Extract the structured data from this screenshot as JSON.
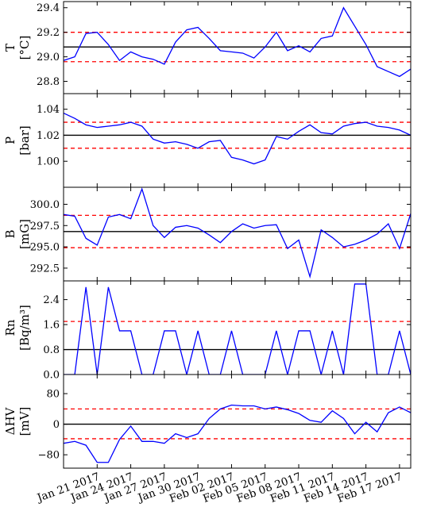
{
  "chart_data": {
    "type": "line",
    "x_dates": [
      "2017-01-18",
      "2017-01-19",
      "2017-01-20",
      "2017-01-21",
      "2017-01-22",
      "2017-01-23",
      "2017-01-24",
      "2017-01-25",
      "2017-01-26",
      "2017-01-27",
      "2017-01-28",
      "2017-01-29",
      "2017-01-30",
      "2017-01-31",
      "2017-02-01",
      "2017-02-02",
      "2017-02-03",
      "2017-02-04",
      "2017-02-05",
      "2017-02-06",
      "2017-02-07",
      "2017-02-08",
      "2017-02-09",
      "2017-02-10",
      "2017-02-11",
      "2017-02-12",
      "2017-02-13",
      "2017-02-14",
      "2017-02-15",
      "2017-02-16",
      "2017-02-17",
      "2017-02-18"
    ],
    "x_ticks": [
      {
        "date": "2017-01-21",
        "label": "Jan 21 2017"
      },
      {
        "date": "2017-01-24",
        "label": "Jan 24 2017"
      },
      {
        "date": "2017-01-27",
        "label": "Jan 27 2017"
      },
      {
        "date": "2017-01-30",
        "label": "Jan 30 2017"
      },
      {
        "date": "2017-02-02",
        "label": "Feb 02 2017"
      },
      {
        "date": "2017-02-05",
        "label": "Feb 05 2017"
      },
      {
        "date": "2017-02-08",
        "label": "Feb 08 2017"
      },
      {
        "date": "2017-02-11",
        "label": "Feb 11 2017"
      },
      {
        "date": "2017-02-14",
        "label": "Feb 14 2017"
      },
      {
        "date": "2017-02-17",
        "label": "Feb 17 2017"
      }
    ],
    "x_range": [
      "2017-01-18",
      "2017-02-18"
    ],
    "colors": {
      "series": "#0000ff",
      "mean": "#000000",
      "band": "#ff0000"
    },
    "panels": [
      {
        "key": "T",
        "ylabel": "T",
        "yunit": "[°C]",
        "ylim": [
          28.7,
          29.45
        ],
        "yticks": [
          28.8,
          29.0,
          29.2,
          29.4
        ],
        "tick_labels": [
          "28.8",
          "29.0",
          "29.2",
          "29.4"
        ],
        "mean": 29.08,
        "band": [
          28.96,
          29.2
        ],
        "values": [
          28.97,
          29.0,
          29.19,
          29.2,
          29.1,
          28.97,
          29.04,
          29.0,
          28.98,
          28.94,
          29.12,
          29.22,
          29.24,
          29.15,
          29.05,
          29.04,
          29.03,
          28.99,
          29.08,
          29.2,
          29.05,
          29.09,
          29.04,
          29.15,
          29.17,
          29.4,
          29.25,
          29.1,
          28.92,
          28.88,
          28.84,
          28.9
        ]
      },
      {
        "key": "P",
        "ylabel": "P",
        "yunit": "[bar]",
        "ylim": [
          0.98,
          1.052
        ],
        "yticks": [
          1.0,
          1.02,
          1.04
        ],
        "tick_labels": [
          "1.00",
          "1.02",
          "1.04"
        ],
        "mean": 1.02,
        "band": [
          1.01,
          1.03
        ],
        "values": [
          1.037,
          1.033,
          1.028,
          1.026,
          1.027,
          1.028,
          1.03,
          1.027,
          1.017,
          1.014,
          1.015,
          1.013,
          1.01,
          1.015,
          1.016,
          1.003,
          1.001,
          0.998,
          1.001,
          1.019,
          1.017,
          1.023,
          1.028,
          1.022,
          1.021,
          1.027,
          1.029,
          1.03,
          1.027,
          1.026,
          1.024,
          1.02
        ]
      },
      {
        "key": "B",
        "ylabel": "B",
        "yunit": "[mG]",
        "ylim": [
          291.0,
          302.0
        ],
        "yticks": [
          292.5,
          295.0,
          297.5,
          300.0
        ],
        "tick_labels": [
          "292.5",
          "295.0",
          "297.5",
          "300.0"
        ],
        "mean": 296.8,
        "band": [
          294.9,
          298.7
        ],
        "values": [
          298.8,
          298.6,
          296.0,
          295.2,
          298.5,
          298.8,
          298.3,
          301.8,
          297.5,
          296.1,
          297.3,
          297.5,
          297.2,
          296.4,
          295.5,
          296.8,
          297.7,
          297.2,
          297.5,
          297.6,
          294.8,
          295.8,
          291.5,
          297.0,
          296.1,
          295.0,
          295.3,
          295.8,
          296.5,
          297.7,
          294.8,
          298.9
        ]
      },
      {
        "key": "Rn",
        "ylabel": "Rn",
        "yunit": "[Bq/m³]",
        "ylim": [
          0.0,
          3.0
        ],
        "yticks": [
          0.0,
          0.8,
          1.6,
          2.4
        ],
        "tick_labels": [
          "0.0",
          "0.8",
          "1.6",
          "2.4"
        ],
        "mean": 0.8,
        "band": [
          null,
          1.7
        ],
        "values": [
          0.0,
          0.0,
          2.8,
          0.0,
          2.8,
          1.4,
          1.4,
          0.0,
          0.0,
          1.4,
          1.4,
          0.0,
          1.4,
          0.0,
          0.0,
          1.4,
          0.0,
          0.0,
          0.0,
          1.4,
          0.0,
          1.4,
          1.4,
          0.0,
          1.4,
          0.0,
          2.9,
          2.9,
          0.0,
          0.0,
          1.4,
          0.0
        ]
      },
      {
        "key": "dHV",
        "ylabel": "ΔHV",
        "yunit": "[mV]",
        "ylim": [
          -115,
          130
        ],
        "yticks": [
          -80,
          0,
          80
        ],
        "tick_labels": [
          "−80",
          "0",
          "80"
        ],
        "mean": 0,
        "band": [
          -38,
          40
        ],
        "values": [
          -50,
          -45,
          -55,
          -100,
          -100,
          -40,
          -5,
          -45,
          -45,
          -50,
          -25,
          -35,
          -25,
          15,
          40,
          50,
          48,
          48,
          40,
          45,
          38,
          28,
          10,
          5,
          35,
          15,
          -25,
          5,
          -20,
          30,
          45,
          30
        ]
      }
    ]
  }
}
